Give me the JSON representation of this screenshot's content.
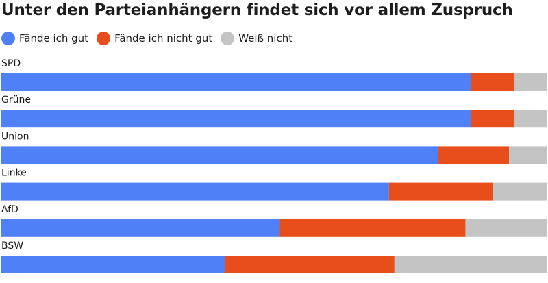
{
  "chart_data": {
    "type": "bar",
    "orientation": "horizontal",
    "stacked": true,
    "title": "Unter den Parteianhängern findet sich vor allem Zuspruch",
    "xlabel": "",
    "ylabel": "",
    "xlim": [
      0,
      100
    ],
    "grid": false,
    "legend_position": "top-left",
    "categories": [
      "SPD",
      "Grüne",
      "Union",
      "Linke",
      "AfD",
      "BSW"
    ],
    "series": [
      {
        "name": "Fände ich gut",
        "color": "#4f80f5",
        "values": [
          86,
          86,
          80,
          71,
          51,
          41
        ]
      },
      {
        "name": "Fände ich nicht gut",
        "color": "#e84e1c",
        "values": [
          8,
          8,
          13,
          19,
          34,
          31
        ]
      },
      {
        "name": "Weiß nicht",
        "color": "#c4c4c4",
        "values": [
          6,
          6,
          7,
          10,
          15,
          28
        ]
      }
    ]
  }
}
